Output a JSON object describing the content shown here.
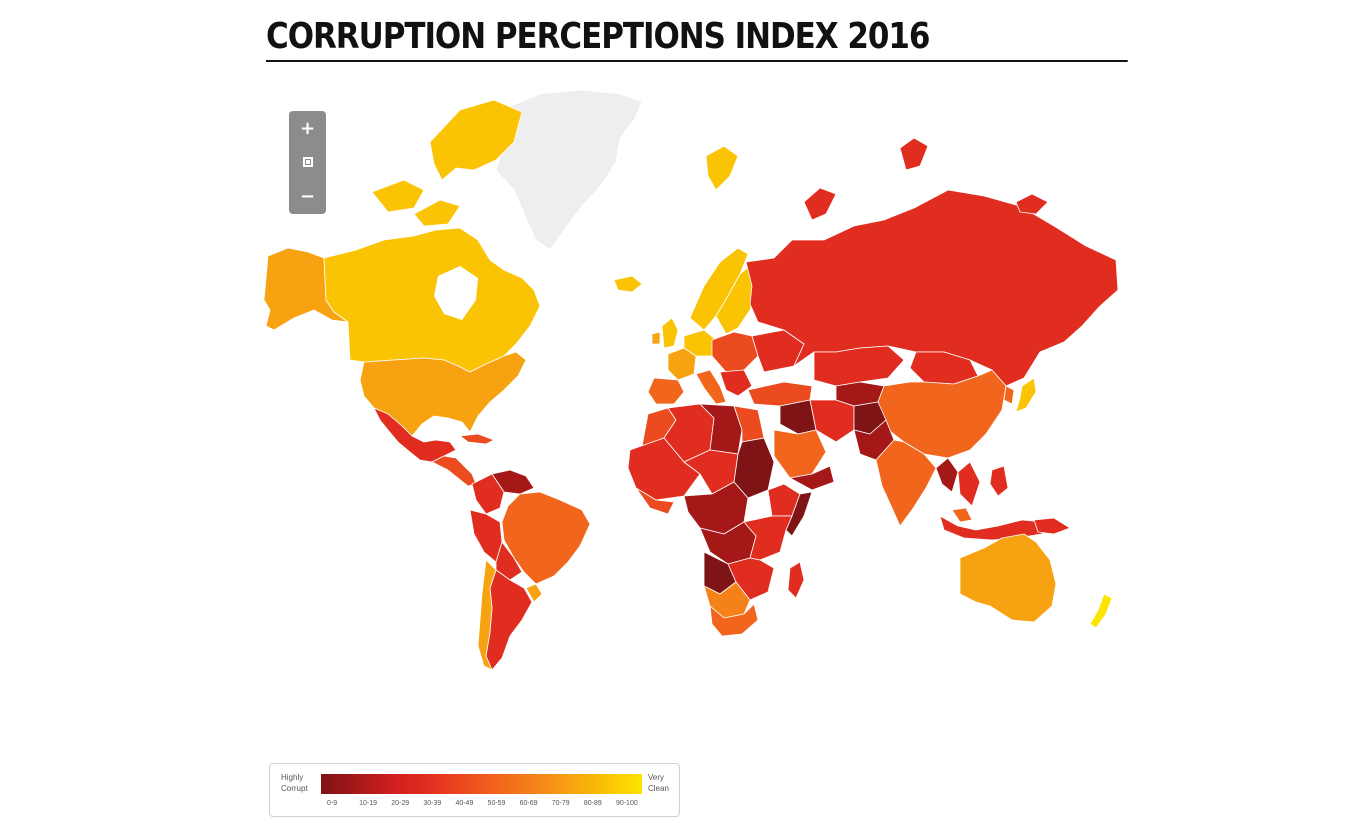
{
  "title": "CORRUPTION PERCEPTIONS INDEX 2016",
  "zoom": {
    "in_label": "+",
    "out_label": "−",
    "reset_icon": "reset-view-icon"
  },
  "legend": {
    "left_line1": "Highly",
    "left_line2": "Corrupt",
    "right_line1": "Very",
    "right_line2": "Clean",
    "ranges": [
      "0-9",
      "10-19",
      "20-29",
      "30-39",
      "40-49",
      "50-59",
      "60-69",
      "70-79",
      "80-89",
      "90-100"
    ],
    "colors": [
      "#7e1416",
      "#a51818",
      "#d11f1f",
      "#e12d1f",
      "#ec4a1f",
      "#f1661c",
      "#f58218",
      "#f7a211",
      "#fac304",
      "#fce400"
    ]
  },
  "map": {
    "no_data_color": "#eeeeee",
    "border_color": "#ffffff"
  }
}
